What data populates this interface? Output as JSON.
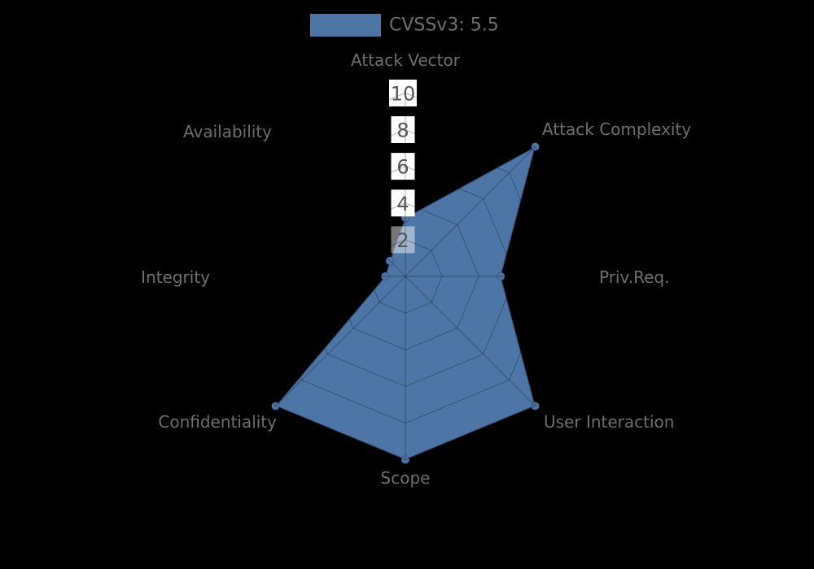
{
  "legend": {
    "label": "CVSSv3: 5.5",
    "swatch_color": "#4d76a7"
  },
  "chart_data": {
    "type": "radar",
    "title": "CVSSv3: 5.5",
    "categories": [
      "Attack Vector",
      "Attack Complexity",
      "Priv.Req.",
      "User Interaction",
      "Scope",
      "Confidentiality",
      "Integrity",
      "Availability"
    ],
    "series": [
      {
        "name": "CVSSv3: 5.5",
        "values": [
          3.2,
          10,
          5.2,
          10,
          10,
          10,
          1.1,
          1.2
        ]
      }
    ],
    "ticks": [
      2,
      4,
      6,
      8,
      10
    ],
    "range": [
      0,
      10
    ],
    "grid": "polygon-web",
    "legend_position": "top-center"
  },
  "colors": {
    "background": "#000000",
    "series_fill": "#4d76a7",
    "grid_line": "rgba(0,0,0,0.25)",
    "axis_text": "#6e6e6e",
    "tick_text": "#555555",
    "tick_box": "#ffffff",
    "tick_box_overlay_opacity": 0.47
  }
}
